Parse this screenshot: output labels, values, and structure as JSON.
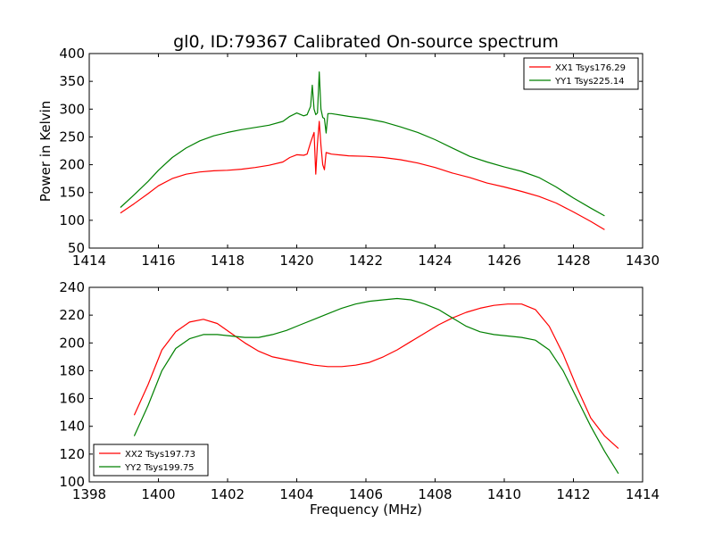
{
  "figure": {
    "title": "gl0, ID:79367 Calibrated On-source spectrum",
    "ylabel": "Power in Kelvin",
    "xlabel": "Frequency (MHz)"
  },
  "chart_data": [
    {
      "type": "line",
      "title": "gl0, ID:79367 Calibrated On-source spectrum",
      "xlabel": "",
      "ylabel": "Power in Kelvin",
      "xlim": [
        1414,
        1430
      ],
      "ylim": [
        50,
        400
      ],
      "xticks": [
        1414,
        1416,
        1418,
        1420,
        1422,
        1424,
        1426,
        1428,
        1430
      ],
      "yticks": [
        50,
        100,
        150,
        200,
        250,
        300,
        350,
        400
      ],
      "grid": false,
      "legend": "top-right",
      "series": [
        {
          "name": "XX1 Tsys176.29",
          "color": "#ff0000",
          "x": [
            1414.9,
            1415.3,
            1415.7,
            1416.0,
            1416.4,
            1416.8,
            1417.2,
            1417.6,
            1418.0,
            1418.4,
            1418.8,
            1419.2,
            1419.6,
            1419.8,
            1420.0,
            1420.2,
            1420.3,
            1420.4,
            1420.5,
            1420.55,
            1420.6,
            1420.65,
            1420.7,
            1420.75,
            1420.8,
            1420.85,
            1420.9,
            1421.0,
            1421.5,
            1422.0,
            1422.5,
            1423.0,
            1423.5,
            1424.0,
            1424.5,
            1425.0,
            1425.5,
            1426.0,
            1426.5,
            1427.0,
            1427.5,
            1428.0,
            1428.5,
            1428.9
          ],
          "y": [
            113,
            130,
            148,
            162,
            175,
            183,
            187,
            189,
            190,
            192,
            195,
            199,
            205,
            213,
            218,
            217,
            219,
            240,
            258,
            183,
            238,
            278,
            235,
            200,
            191,
            222,
            221,
            219,
            216,
            215,
            213,
            209,
            203,
            195,
            185,
            177,
            167,
            160,
            152,
            143,
            131,
            115,
            98,
            83
          ]
        },
        {
          "name": "YY1 Tsys225.14",
          "color": "#008000",
          "x": [
            1414.9,
            1415.3,
            1415.7,
            1416.0,
            1416.4,
            1416.8,
            1417.2,
            1417.6,
            1418.0,
            1418.4,
            1418.8,
            1419.2,
            1419.6,
            1419.8,
            1420.0,
            1420.2,
            1420.3,
            1420.4,
            1420.45,
            1420.5,
            1420.55,
            1420.6,
            1420.65,
            1420.7,
            1420.75,
            1420.8,
            1420.85,
            1420.9,
            1421.0,
            1421.5,
            1422.0,
            1422.5,
            1423.0,
            1423.5,
            1424.0,
            1424.5,
            1425.0,
            1425.5,
            1426.0,
            1426.5,
            1427.0,
            1427.5,
            1428.0,
            1428.5,
            1428.9
          ],
          "y": [
            123,
            146,
            170,
            190,
            213,
            230,
            243,
            252,
            258,
            263,
            267,
            271,
            278,
            287,
            293,
            288,
            290,
            305,
            343,
            300,
            290,
            293,
            367,
            300,
            285,
            283,
            257,
            292,
            292,
            287,
            283,
            277,
            268,
            258,
            245,
            230,
            215,
            205,
            196,
            188,
            177,
            160,
            140,
            122,
            108
          ]
        }
      ]
    },
    {
      "type": "line",
      "title": "",
      "xlabel": "Frequency (MHz)",
      "ylabel": "",
      "xlim": [
        1398,
        1414
      ],
      "ylim": [
        100,
        240
      ],
      "xticks": [
        1398,
        1400,
        1402,
        1404,
        1406,
        1408,
        1410,
        1412,
        1414
      ],
      "yticks": [
        100,
        120,
        140,
        160,
        180,
        200,
        220,
        240
      ],
      "grid": false,
      "legend": "bottom-left",
      "series": [
        {
          "name": "XX2 Tsys197.73",
          "color": "#ff0000",
          "x": [
            1399.3,
            1399.7,
            1400.1,
            1400.5,
            1400.9,
            1401.3,
            1401.7,
            1402.1,
            1402.5,
            1402.9,
            1403.3,
            1403.7,
            1404.1,
            1404.5,
            1404.9,
            1405.3,
            1405.7,
            1406.1,
            1406.5,
            1406.9,
            1407.3,
            1407.7,
            1408.1,
            1408.5,
            1408.9,
            1409.3,
            1409.7,
            1410.1,
            1410.5,
            1410.9,
            1411.3,
            1411.7,
            1412.1,
            1412.5,
            1412.9,
            1413.3
          ],
          "y": [
            148,
            170,
            195,
            208,
            215,
            217,
            214,
            207,
            200,
            194,
            190,
            188,
            186,
            184,
            183,
            183,
            184,
            186,
            190,
            195,
            201,
            207,
            213,
            218,
            222,
            225,
            227,
            228,
            228,
            224,
            212,
            192,
            168,
            146,
            133,
            124
          ]
        },
        {
          "name": "YY2 Tsys199.75",
          "color": "#008000",
          "x": [
            1399.3,
            1399.7,
            1400.1,
            1400.5,
            1400.9,
            1401.3,
            1401.7,
            1402.1,
            1402.5,
            1402.9,
            1403.3,
            1403.7,
            1404.1,
            1404.5,
            1404.9,
            1405.3,
            1405.7,
            1406.1,
            1406.5,
            1406.9,
            1407.3,
            1407.7,
            1408.1,
            1408.5,
            1408.9,
            1409.3,
            1409.7,
            1410.1,
            1410.5,
            1410.9,
            1411.3,
            1411.7,
            1412.1,
            1412.5,
            1412.9,
            1413.3
          ],
          "y": [
            133,
            155,
            180,
            196,
            203,
            206,
            206,
            205,
            204,
            204,
            206,
            209,
            213,
            217,
            221,
            225,
            228,
            230,
            231,
            232,
            231,
            228,
            224,
            218,
            212,
            208,
            206,
            205,
            204,
            202,
            195,
            180,
            160,
            140,
            122,
            106
          ]
        }
      ]
    }
  ]
}
